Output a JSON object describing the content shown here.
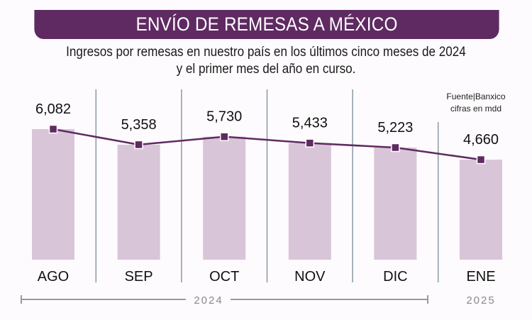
{
  "chart_data": {
    "type": "bar+line",
    "title": "ENVÍO DE REMESAS A MÉXICO",
    "subtitle_lines": [
      "Ingresos por remesas en nuestro país en los últimos cinco meses de 2024",
      "y el primer mes del año en curso."
    ],
    "source_lines": [
      "Fuente|Banxico",
      "cifras en mdd"
    ],
    "categories": [
      "AGO",
      "SEP",
      "OCT",
      "NOV",
      "DIC",
      "ENE"
    ],
    "values": [
      6082,
      5358,
      5730,
      5433,
      5223,
      4660
    ],
    "value_labels": [
      "6,082",
      "5,358",
      "5,730",
      "5,433",
      "5,223",
      "4,660"
    ],
    "year_groups": [
      {
        "label": "2024",
        "categories": [
          "AGO",
          "SEP",
          "OCT",
          "NOV",
          "DIC"
        ]
      },
      {
        "label": "2025",
        "categories": [
          "ENE"
        ]
      }
    ],
    "ylim": [
      0,
      6082
    ],
    "grid": false,
    "colors": {
      "bar": "#d9c5d8",
      "line": "#5f2a62",
      "banner": "#5f2a62",
      "separator": "#8a9aa5",
      "year_line": "#9a9a9a"
    }
  }
}
